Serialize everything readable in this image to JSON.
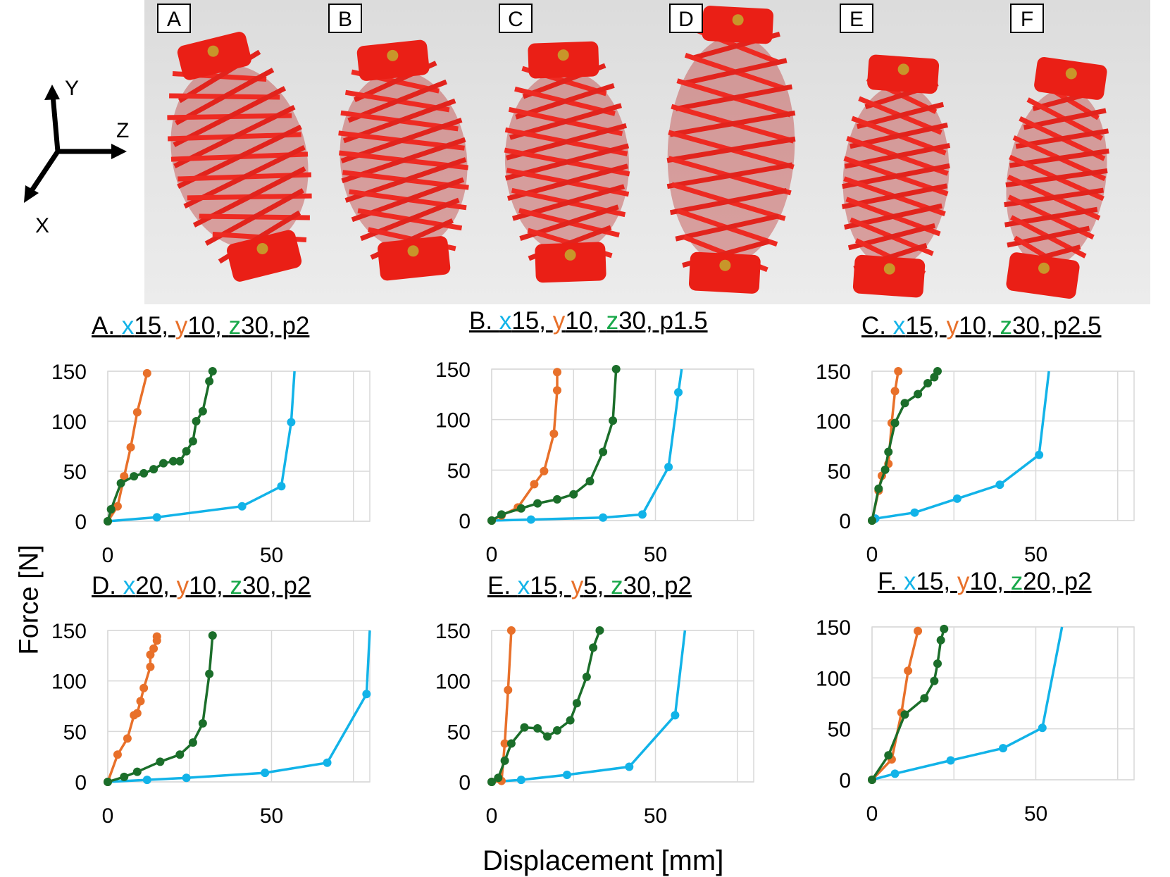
{
  "photo": {
    "labels": [
      "A",
      "B",
      "C",
      "D",
      "E",
      "F"
    ]
  },
  "axes_icon": {
    "x": "X",
    "y": "Y",
    "z": "Z"
  },
  "y_axis_label": "Force [N]",
  "x_axis_label": "Displacement [mm]",
  "colors": {
    "x": "#12b3e8",
    "y": "#e8702a",
    "z": "#1b6e2a",
    "z_title": "#18a84a"
  },
  "chart_data": [
    {
      "type": "line",
      "title": {
        "prefix": "A. ",
        "x": "x",
        "xv": "15, ",
        "y": "y",
        "yv": "10, ",
        "z": "z",
        "zv": "30, p2"
      },
      "xlim": [
        0,
        80
      ],
      "ylim": [
        0,
        150
      ],
      "xticks": [
        0,
        50
      ],
      "yticks": [
        0,
        50,
        100,
        150
      ],
      "series": [
        {
          "name": "x",
          "points": [
            [
              0,
              0
            ],
            [
              15,
              4
            ],
            [
              41,
              15
            ],
            [
              53,
              35
            ],
            [
              56,
              99
            ],
            [
              57,
              150
            ]
          ]
        },
        {
          "name": "y",
          "points": [
            [
              0,
              0
            ],
            [
              3,
              15
            ],
            [
              5,
              45
            ],
            [
              7,
              74
            ],
            [
              9,
              109
            ],
            [
              12,
              148
            ]
          ]
        },
        {
          "name": "z",
          "points": [
            [
              0,
              0
            ],
            [
              1,
              12
            ],
            [
              4,
              38
            ],
            [
              8,
              45
            ],
            [
              11,
              48
            ],
            [
              14,
              52
            ],
            [
              17,
              58
            ],
            [
              20,
              60
            ],
            [
              22,
              60
            ],
            [
              24,
              70
            ],
            [
              26,
              80
            ],
            [
              27,
              100
            ],
            [
              29,
              110
            ],
            [
              31,
              140
            ],
            [
              32,
              150
            ]
          ]
        }
      ]
    },
    {
      "type": "line",
      "title": {
        "prefix": "B. ",
        "x": "x",
        "xv": "15, ",
        "y": "y",
        "yv": "10, ",
        "z": "z",
        "zv": "30, p1.5"
      },
      "xlim": [
        0,
        80
      ],
      "ylim": [
        0,
        150
      ],
      "xticks": [
        0,
        50
      ],
      "yticks": [
        0,
        50,
        100,
        150
      ],
      "series": [
        {
          "name": "x",
          "points": [
            [
              0,
              0
            ],
            [
              12,
              1
            ],
            [
              34,
              3
            ],
            [
              46,
              6
            ],
            [
              54,
              53
            ],
            [
              57,
              127
            ],
            [
              58,
              150
            ]
          ]
        },
        {
          "name": "y",
          "points": [
            [
              0,
              0
            ],
            [
              3,
              5
            ],
            [
              8,
              13
            ],
            [
              13,
              36
            ],
            [
              16,
              49
            ],
            [
              19,
              86
            ],
            [
              20,
              129
            ],
            [
              20,
              147
            ]
          ]
        },
        {
          "name": "z",
          "points": [
            [
              0,
              0
            ],
            [
              3,
              6
            ],
            [
              9,
              12
            ],
            [
              14,
              17
            ],
            [
              20,
              21
            ],
            [
              25,
              26
            ],
            [
              30,
              39
            ],
            [
              34,
              68
            ],
            [
              37,
              99
            ],
            [
              38,
              150
            ]
          ]
        }
      ]
    },
    {
      "type": "line",
      "title": {
        "prefix": "C. ",
        "x": "x",
        "xv": "15, ",
        "y": "y",
        "yv": "10, ",
        "z": "z",
        "zv": "30, p2.5"
      },
      "xlim": [
        0,
        80
      ],
      "ylim": [
        0,
        150
      ],
      "xticks": [
        0,
        50
      ],
      "yticks": [
        0,
        50,
        100,
        150
      ],
      "series": [
        {
          "name": "x",
          "points": [
            [
              0,
              0
            ],
            [
              1,
              2
            ],
            [
              13,
              8
            ],
            [
              26,
              22
            ],
            [
              39,
              36
            ],
            [
              51,
              66
            ],
            [
              54,
              150
            ]
          ]
        },
        {
          "name": "y",
          "points": [
            [
              0,
              0
            ],
            [
              2,
              30
            ],
            [
              3,
              45
            ],
            [
              5,
              57
            ],
            [
              6,
              98
            ],
            [
              7,
              130
            ],
            [
              8,
              150
            ]
          ]
        },
        {
          "name": "z",
          "points": [
            [
              0,
              0
            ],
            [
              2,
              32
            ],
            [
              4,
              51
            ],
            [
              5,
              69
            ],
            [
              7,
              98
            ],
            [
              10,
              118
            ],
            [
              14,
              127
            ],
            [
              17,
              138
            ],
            [
              19,
              144
            ],
            [
              20,
              150
            ]
          ]
        }
      ]
    },
    {
      "type": "line",
      "title": {
        "prefix": "D. ",
        "x": "x",
        "xv": "20, ",
        "y": "y",
        "yv": "10, ",
        "z": "z",
        "zv": "30, p2"
      },
      "xlim": [
        0,
        80
      ],
      "ylim": [
        0,
        150
      ],
      "xticks": [
        0,
        50
      ],
      "yticks": [
        0,
        50,
        100,
        150
      ],
      "series": [
        {
          "name": "x",
          "points": [
            [
              0,
              0
            ],
            [
              12,
              2
            ],
            [
              24,
              4
            ],
            [
              48,
              9
            ],
            [
              67,
              19
            ],
            [
              79,
              87
            ],
            [
              80,
              150
            ]
          ]
        },
        {
          "name": "y",
          "points": [
            [
              0,
              0
            ],
            [
              3,
              27
            ],
            [
              6,
              43
            ],
            [
              8,
              66
            ],
            [
              9,
              68
            ],
            [
              10,
              80
            ],
            [
              11,
              93
            ],
            [
              13,
              114
            ],
            [
              13,
              126
            ],
            [
              14,
              132
            ],
            [
              15,
              140
            ],
            [
              15,
              144
            ]
          ]
        },
        {
          "name": "z",
          "points": [
            [
              0,
              0
            ],
            [
              5,
              5
            ],
            [
              9,
              10
            ],
            [
              16,
              20
            ],
            [
              22,
              27
            ],
            [
              26,
              39
            ],
            [
              29,
              58
            ],
            [
              31,
              107
            ],
            [
              32,
              145
            ]
          ]
        }
      ]
    },
    {
      "type": "line",
      "title": {
        "prefix": "E. ",
        "x": "x",
        "xv": "15, ",
        "y": "y",
        "yv": "5, ",
        "z": "z",
        "zv": "30, p2"
      },
      "xlim": [
        0,
        80
      ],
      "ylim": [
        0,
        150
      ],
      "xticks": [
        0,
        50
      ],
      "yticks": [
        0,
        50,
        100,
        150
      ],
      "series": [
        {
          "name": "x",
          "points": [
            [
              0,
              0
            ],
            [
              9,
              2
            ],
            [
              23,
              7
            ],
            [
              42,
              15
            ],
            [
              56,
              66
            ],
            [
              59,
              150
            ]
          ]
        },
        {
          "name": "y",
          "points": [
            [
              0,
              0
            ],
            [
              3,
              1
            ],
            [
              4,
              38
            ],
            [
              5,
              91
            ],
            [
              6,
              150
            ]
          ]
        },
        {
          "name": "z",
          "points": [
            [
              0,
              0
            ],
            [
              2,
              4
            ],
            [
              4,
              21
            ],
            [
              6,
              38
            ],
            [
              10,
              54
            ],
            [
              14,
              53
            ],
            [
              17,
              45
            ],
            [
              20,
              51
            ],
            [
              24,
              61
            ],
            [
              26,
              78
            ],
            [
              29,
              104
            ],
            [
              31,
              133
            ],
            [
              33,
              150
            ]
          ]
        }
      ]
    },
    {
      "type": "line",
      "title": {
        "prefix": "F. ",
        "x": "x",
        "xv": "15, ",
        "y": "y",
        "yv": "10, ",
        "z": "z",
        "zv": "20, p2"
      },
      "xlim": [
        0,
        80
      ],
      "ylim": [
        0,
        150
      ],
      "xticks": [
        0,
        50
      ],
      "yticks": [
        0,
        50,
        100,
        150
      ],
      "series": [
        {
          "name": "x",
          "points": [
            [
              0,
              0
            ],
            [
              7,
              6
            ],
            [
              24,
              19
            ],
            [
              40,
              31
            ],
            [
              52,
              51
            ],
            [
              58,
              150
            ]
          ]
        },
        {
          "name": "y",
          "points": [
            [
              0,
              0
            ],
            [
              6,
              20
            ],
            [
              9,
              66
            ],
            [
              11,
              107
            ],
            [
              14,
              146
            ]
          ]
        },
        {
          "name": "z",
          "points": [
            [
              0,
              0
            ],
            [
              5,
              24
            ],
            [
              10,
              64
            ],
            [
              16,
              80
            ],
            [
              19,
              97
            ],
            [
              20,
              114
            ],
            [
              21,
              137
            ],
            [
              22,
              148
            ]
          ]
        }
      ]
    }
  ]
}
